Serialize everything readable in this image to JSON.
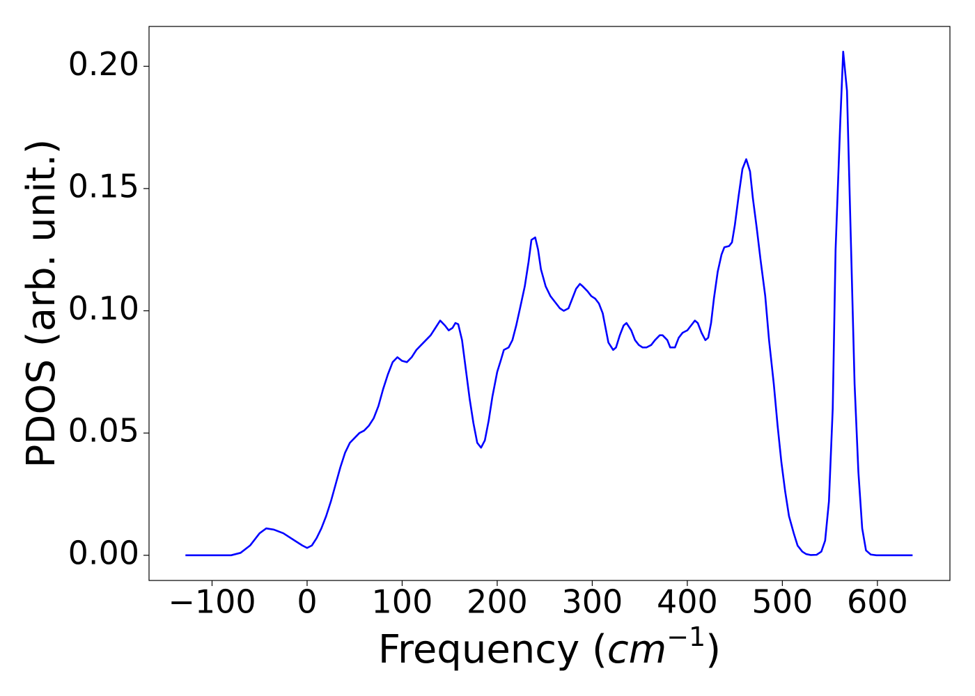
{
  "chart_data": {
    "type": "line",
    "xlabel": [
      "Frequency (",
      "cm",
      "−1",
      ")"
    ],
    "ylabel": "PDOS (arb. unit.)",
    "xlim": [
      -166.3,
      676.3
    ],
    "ylim": [
      -0.0103,
      0.2163
    ],
    "xticks": [
      {
        "value": -100,
        "label": "−100"
      },
      0,
      100,
      200,
      300,
      400,
      500,
      600
    ],
    "yticks": [
      {
        "value": 0,
        "label": "0.00"
      },
      {
        "value": 0.05,
        "label": "0.05"
      },
      {
        "value": 0.1,
        "label": "0.10"
      },
      {
        "value": 0.15,
        "label": "0.15"
      },
      {
        "value": 0.2,
        "label": "0.20"
      }
    ],
    "grid": false,
    "x": [
      -128,
      -80,
      -70,
      -60,
      -50,
      -43,
      -35,
      -25,
      -15,
      -5,
      0,
      5,
      10,
      15,
      20,
      25,
      30,
      35,
      40,
      45,
      50,
      55,
      60,
      65,
      70,
      75,
      80,
      85,
      90,
      95,
      100,
      105,
      110,
      115,
      120,
      125,
      130,
      135,
      140,
      145,
      149,
      153,
      156,
      159,
      163,
      167,
      171,
      175,
      179,
      183,
      187,
      191,
      195,
      200,
      204,
      207,
      212,
      216,
      220,
      224,
      229,
      233,
      236,
      240,
      243,
      246,
      251,
      256,
      262,
      266,
      270,
      275,
      279,
      283,
      287,
      290,
      295,
      299,
      303,
      307,
      311,
      314,
      317,
      322,
      325,
      329,
      333,
      336,
      341,
      345,
      349,
      353,
      357,
      362,
      366,
      371,
      374,
      379,
      382,
      387,
      391,
      395,
      400,
      404,
      408,
      411,
      415,
      419,
      422,
      425,
      428,
      432,
      436,
      439,
      444,
      447,
      450,
      454,
      458,
      462,
      466,
      469,
      473,
      477,
      482,
      486,
      491,
      495,
      499,
      503,
      507,
      512,
      516,
      521,
      525,
      530,
      536,
      541,
      545,
      549,
      553,
      556,
      561,
      564,
      568,
      572,
      576,
      580,
      584,
      588,
      593,
      599,
      637
    ],
    "series": [
      {
        "name": "PDOS",
        "color": "#0000ff",
        "values": [
          0,
          0,
          0.001,
          0.004,
          0.009,
          0.011,
          0.0105,
          0.009,
          0.0065,
          0.004,
          0.003,
          0.004,
          0.007,
          0.011,
          0.016,
          0.022,
          0.029,
          0.036,
          0.042,
          0.046,
          0.048,
          0.05,
          0.051,
          0.053,
          0.056,
          0.061,
          0.068,
          0.074,
          0.079,
          0.081,
          0.0795,
          0.079,
          0.081,
          0.084,
          0.086,
          0.088,
          0.09,
          0.093,
          0.096,
          0.094,
          0.092,
          0.093,
          0.095,
          0.0945,
          0.088,
          0.076,
          0.064,
          0.054,
          0.046,
          0.044,
          0.047,
          0.055,
          0.065,
          0.075,
          0.08,
          0.084,
          0.085,
          0.088,
          0.094,
          0.101,
          0.11,
          0.12,
          0.129,
          0.13,
          0.125,
          0.117,
          0.11,
          0.106,
          0.103,
          0.101,
          0.1,
          0.101,
          0.105,
          0.109,
          0.111,
          0.11,
          0.108,
          0.106,
          0.105,
          0.103,
          0.099,
          0.093,
          0.087,
          0.084,
          0.085,
          0.09,
          0.094,
          0.095,
          0.092,
          0.088,
          0.086,
          0.085,
          0.085,
          0.086,
          0.088,
          0.09,
          0.09,
          0.088,
          0.085,
          0.085,
          0.089,
          0.091,
          0.092,
          0.094,
          0.096,
          0.095,
          0.091,
          0.088,
          0.089,
          0.095,
          0.105,
          0.116,
          0.123,
          0.126,
          0.1265,
          0.128,
          0.135,
          0.147,
          0.158,
          0.162,
          0.157,
          0.146,
          0.134,
          0.121,
          0.106,
          0.088,
          0.07,
          0.053,
          0.038,
          0.026,
          0.016,
          0.009,
          0.004,
          0.0015,
          0.0005,
          0.0001,
          0.0002,
          0.0015,
          0.006,
          0.022,
          0.06,
          0.125,
          0.178,
          0.206,
          0.19,
          0.13,
          0.07,
          0.034,
          0.011,
          0.002,
          0.0003,
          0,
          0
        ]
      }
    ]
  }
}
